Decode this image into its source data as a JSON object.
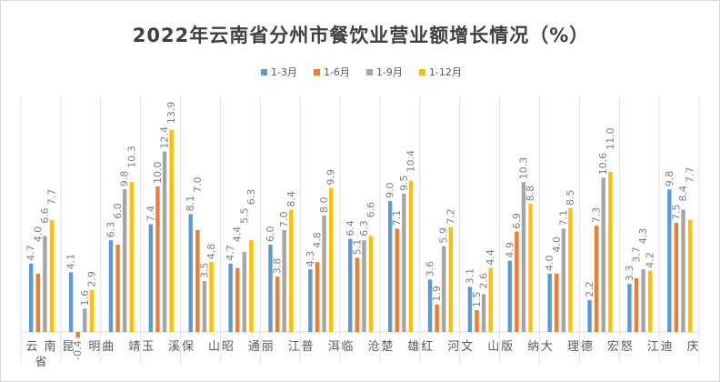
{
  "chart_data": {
    "type": "bar",
    "title": "2022年云南省分州市餐饮业营业额增长情况（%）",
    "xlabel": "",
    "ylabel": "",
    "categories": [
      "云南省",
      "昆明",
      "曲靖",
      "玉溪",
      "保山",
      "昭通",
      "丽江",
      "普洱",
      "临沧",
      "楚雄",
      "红河",
      "文山",
      "版纳",
      "大理",
      "德宏",
      "怒江",
      "迪庆"
    ],
    "category_labels": [
      [
        "云",
        "南",
        "省"
      ],
      [
        "昆",
        "明"
      ],
      [
        "曲",
        "靖"
      ],
      [
        "玉",
        "溪"
      ],
      [
        "保",
        "山"
      ],
      [
        "昭",
        "通"
      ],
      [
        "丽",
        "江"
      ],
      [
        "普",
        "洱"
      ],
      [
        "临",
        "沧"
      ],
      [
        "楚",
        "雄"
      ],
      [
        "红",
        "河"
      ],
      [
        "文",
        "山"
      ],
      [
        "版",
        "纳"
      ],
      [
        "大",
        "理"
      ],
      [
        "德",
        "宏"
      ],
      [
        "怒",
        "江"
      ],
      [
        "迪",
        "庆"
      ]
    ],
    "series": [
      {
        "name": "1-3月",
        "color": "#5B9BD5",
        "values": [
          4.7,
          4.1,
          6.3,
          7.4,
          8.1,
          4.7,
          6.0,
          4.3,
          6.4,
          9.0,
          3.6,
          3.1,
          4.9,
          4.0,
          2.2,
          3.3,
          9.8
        ]
      },
      {
        "name": "1-6月",
        "color": "#ED7D31",
        "values": [
          4.0,
          -0.4,
          6.0,
          10.0,
          7.0,
          4.4,
          3.8,
          4.8,
          5.1,
          7.1,
          1.9,
          1.5,
          6.9,
          4.0,
          7.3,
          3.7,
          7.5
        ]
      },
      {
        "name": "1-9月",
        "color": "#A5A5A5",
        "values": [
          6.6,
          1.6,
          9.8,
          12.4,
          3.5,
          5.5,
          7.0,
          8.0,
          6.3,
          9.5,
          5.9,
          2.6,
          10.3,
          7.1,
          10.6,
          4.3,
          8.4
        ]
      },
      {
        "name": "1-12月",
        "color": "#FFC000",
        "values": [
          7.7,
          2.9,
          10.3,
          13.9,
          4.8,
          6.3,
          8.4,
          9.9,
          6.6,
          10.4,
          7.2,
          4.4,
          8.8,
          8.5,
          11.0,
          4.2,
          7.7
        ]
      }
    ],
    "legend_position": "top",
    "grid": false,
    "data_labels": true
  }
}
